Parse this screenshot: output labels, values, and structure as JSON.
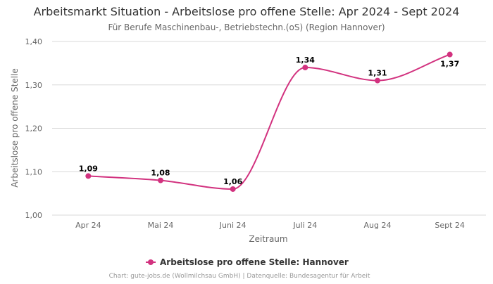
{
  "chart_data": {
    "type": "line",
    "title": "Arbeitsmarkt Situation - Arbeitslose pro offene Stelle: Apr 2024 - Sept 2024",
    "subtitle": "Für Berufe Maschinenbau-, Betriebstechn.(oS) (Region Hannover)",
    "xlabel": "Zeitraum",
    "ylabel": "Arbeitslose pro offene Stelle",
    "categories": [
      "Apr 24",
      "Mai 24",
      "Juni 24",
      "Juli 24",
      "Aug 24",
      "Sept 24"
    ],
    "series": [
      {
        "name": "Arbeitslose pro offene Stelle: Hannover",
        "values": [
          1.09,
          1.08,
          1.06,
          1.34,
          1.31,
          1.37
        ],
        "labels": [
          "1,09",
          "1,08",
          "1,06",
          "1,34",
          "1,31",
          "1,37"
        ],
        "color": "#d2327f"
      }
    ],
    "ylim": [
      1.0,
      1.4
    ],
    "yticks": [
      1.0,
      1.1,
      1.2,
      1.3,
      1.4
    ],
    "ytick_labels": [
      "1,00",
      "1,10",
      "1,20",
      "1,30",
      "1,40"
    ],
    "grid": true,
    "legend_position": "bottom-center",
    "credits": "Chart: gute-jobs.de (Wollmilchsau GmbH) | Datenquelle: Bundesagentur für Arbeit"
  }
}
